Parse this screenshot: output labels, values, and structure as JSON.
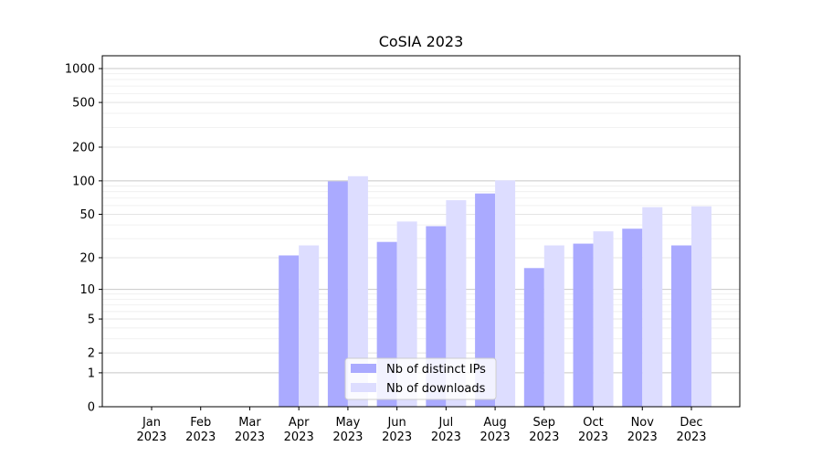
{
  "chart_data": {
    "type": "bar",
    "title": "CoSIA 2023",
    "xlabel": "",
    "ylabel": "",
    "y_scale": "symlog",
    "ylim": [
      0,
      1300
    ],
    "y_ticks": [
      0,
      1,
      2,
      5,
      10,
      20,
      50,
      100,
      200,
      500,
      1000
    ],
    "y_tick_labels": [
      "0",
      "1",
      "2",
      "5",
      "10",
      "20",
      "50",
      "100",
      "200",
      "500",
      "1000"
    ],
    "categories": [
      "Jan\n2023",
      "Feb\n2023",
      "Mar\n2023",
      "Apr\n2023",
      "May\n2023",
      "Jun\n2023",
      "Jul\n2023",
      "Aug\n2023",
      "Sep\n2023",
      "Oct\n2023",
      "Nov\n2023",
      "Dec\n2023"
    ],
    "series": [
      {
        "name": "Nb of distinct IPs",
        "color": "#aaaaff",
        "values": [
          0,
          0,
          0,
          21,
          99,
          28,
          39,
          77,
          16,
          27,
          37,
          26
        ]
      },
      {
        "name": "Nb of downloads",
        "color": "#ddddff",
        "values": [
          0,
          0,
          0,
          26,
          110,
          43,
          67,
          101,
          26,
          35,
          58,
          59
        ]
      }
    ],
    "grid": true,
    "legend_position": "lower-center"
  }
}
